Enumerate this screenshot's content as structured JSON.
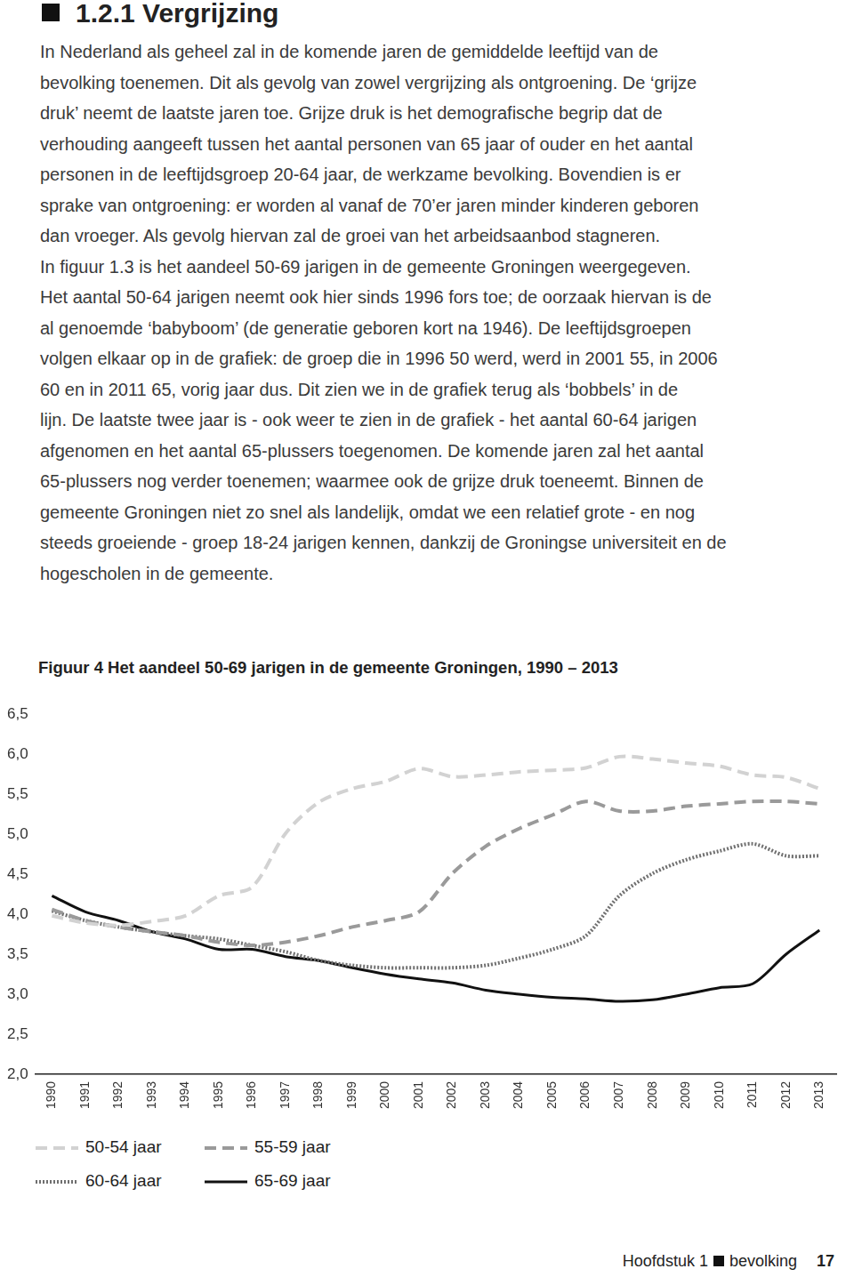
{
  "heading": "1.2.1 Vergrijzing",
  "body_lines": [
    "In Nederland als geheel zal in de komende jaren de gemiddelde leeftijd van de",
    "bevolking toenemen. Dit als gevolg van zowel vergrijzing als ontgroening. De ‘grijze",
    "druk’ neemt de laatste jaren toe. Grijze druk is het demografische begrip dat de",
    "verhouding aangeeft tussen het aantal personen van 65 jaar of ouder en het aantal",
    "personen in de leeftijdsgroep 20-64 jaar, de werkzame bevolking. Bovendien is er",
    "sprake van ontgroening: er worden al vanaf de 70’er jaren minder kinderen geboren",
    "dan vroeger. Als gevolg hiervan zal de groei van het arbeidsaanbod stagneren.",
    "In figuur 1.3 is het aandeel 50-69 jarigen in de gemeente Groningen weergegeven.",
    "Het aantal 50-64 jarigen neemt ook hier sinds 1996 fors toe; de oorzaak hiervan is de",
    "al genoemde ‘babyboom’ (de generatie geboren kort na 1946). De leeftijdsgroepen",
    "volgen elkaar op in de grafiek: de groep die in 1996 50 werd, werd in 2001 55, in 2006",
    "60 en in 2011 65, vorig jaar dus. Dit zien we in de grafiek terug als ‘bobbels’ in de",
    "lijn. De laatste twee jaar is - ook weer te zien in de grafiek - het aantal 60-64 jarigen",
    "afgenomen en het aantal 65-plussers toegenomen. De komende jaren zal het aantal",
    "65-plussers nog verder toenemen; waarmee ook de grijze druk toeneemt. Binnen de",
    "gemeente Groningen niet zo snel als landelijk, omdat we een relatief grote - en nog",
    "steeds groeiende - groep 18-24 jarigen kennen, dankzij de Groningse universiteit en de",
    "hogescholen in de gemeente."
  ],
  "chart_data": {
    "type": "line",
    "title": "Figuur 4 Het aandeel 50-69 jarigen in de gemeente Groningen, 1990 – 2013",
    "categories": [
      "1990",
      "1991",
      "1992",
      "1993",
      "1994",
      "1995",
      "1996",
      "1997",
      "1998",
      "1999",
      "2000",
      "2001",
      "2002",
      "2003",
      "2004",
      "2005",
      "2006",
      "2007",
      "2008",
      "2009",
      "2010",
      "2011",
      "2012",
      "2013"
    ],
    "series": [
      {
        "name": "50-54 jaar",
        "color": "#d2d2d2",
        "line_style": "dashed",
        "values": [
          3.98,
          3.89,
          3.86,
          3.91,
          3.98,
          4.23,
          4.34,
          5.01,
          5.4,
          5.57,
          5.66,
          5.82,
          5.72,
          5.74,
          5.78,
          5.8,
          5.83,
          5.97,
          5.94,
          5.89,
          5.85,
          5.74,
          5.71,
          5.57
        ]
      },
      {
        "name": "55-59 jaar",
        "color": "#9a9a9a",
        "line_style": "dashed",
        "values": [
          4.06,
          3.92,
          3.84,
          3.78,
          3.73,
          3.65,
          3.61,
          3.65,
          3.73,
          3.84,
          3.92,
          4.03,
          4.51,
          4.85,
          5.07,
          5.24,
          5.41,
          5.29,
          5.29,
          5.35,
          5.38,
          5.41,
          5.41,
          5.38
        ]
      },
      {
        "name": "60-64 jaar",
        "color": "#707070",
        "line_style": "dotted",
        "values": [
          4.04,
          3.92,
          3.84,
          3.78,
          3.73,
          3.69,
          3.61,
          3.53,
          3.42,
          3.36,
          3.33,
          3.33,
          3.33,
          3.36,
          3.45,
          3.56,
          3.73,
          4.23,
          4.51,
          4.68,
          4.79,
          4.88,
          4.73,
          4.73
        ]
      },
      {
        "name": "65-69 jaar",
        "color": "#111111",
        "line_style": "solid",
        "values": [
          4.23,
          4.03,
          3.92,
          3.78,
          3.69,
          3.56,
          3.56,
          3.47,
          3.42,
          3.33,
          3.25,
          3.19,
          3.14,
          3.05,
          3.0,
          2.96,
          2.94,
          2.91,
          2.93,
          3.0,
          3.08,
          3.13,
          3.5,
          3.8
        ]
      }
    ],
    "ylim": [
      2,
      6.5
    ],
    "yticks": [
      {
        "value": 2,
        "label": "2,0"
      },
      {
        "value": 2.5,
        "label": "2,5"
      },
      {
        "value": 3,
        "label": "3,0"
      },
      {
        "value": 3.5,
        "label": "3,5"
      },
      {
        "value": 4,
        "label": "4,0"
      },
      {
        "value": 4.5,
        "label": "4,5"
      },
      {
        "value": 5,
        "label": "5,0"
      },
      {
        "value": 5.5,
        "label": "5,5"
      },
      {
        "value": 6,
        "label": "6,0"
      },
      {
        "value": 6.5,
        "label": "6,5"
      }
    ],
    "grid": false,
    "legend": "bottom"
  },
  "footer": {
    "chapter": "Hoofdstuk 1",
    "section": "bevolking",
    "page": "17"
  }
}
